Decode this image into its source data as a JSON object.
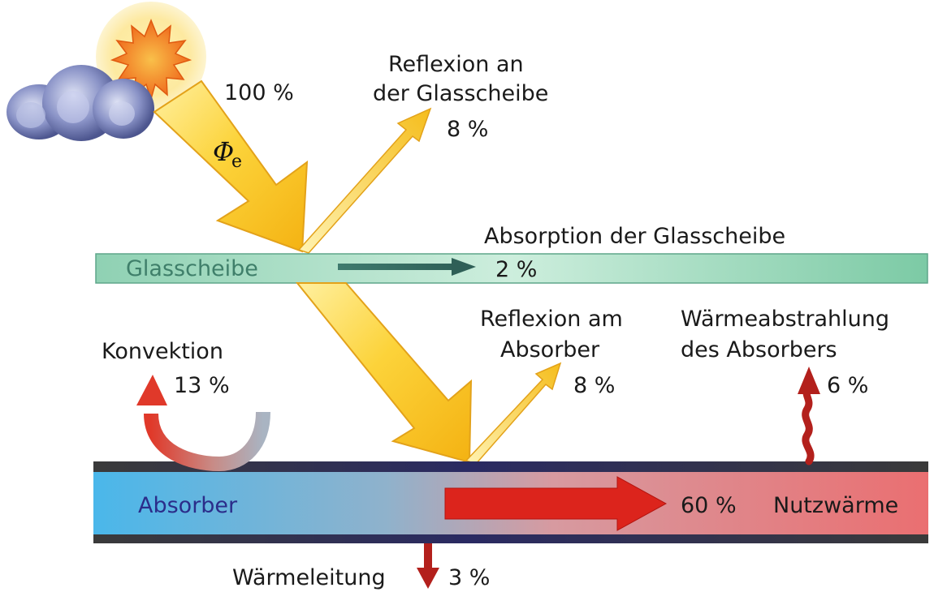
{
  "incoming": {
    "symbol": "Φ",
    "subscript": "e",
    "percent": "100 %"
  },
  "glass": {
    "label": "Glasscheibe",
    "reflection_title_1": "Reflexion an",
    "reflection_title_2": "der Glasscheibe",
    "reflection_percent": "8 %",
    "absorption_title": "Absorption der Glasscheibe",
    "absorption_percent": "2 %"
  },
  "absorber": {
    "label": "Absorber",
    "reflection_title_1": "Reflexion am",
    "reflection_title_2": "Absorber",
    "reflection_percent": "8 %",
    "radiation_title_1": "Wärmeabstrahlung",
    "radiation_title_2": "des Absorbers",
    "radiation_percent": "6 %",
    "useful_percent": "60 %",
    "useful_label": "Nutzwärme",
    "conduction_label": "Wärmeleitung",
    "conduction_percent": "3 %"
  },
  "convection": {
    "label": "Konvektion",
    "percent": "13 %"
  },
  "colors": {
    "beam": "#f7c21f",
    "beam_light": "#fde98a",
    "glass_left": "#7fc8a8",
    "glass_right": "#b6e2cd",
    "absorber_left": "#4db8e8",
    "absorber_right": "#e87070",
    "arrow_red": "#d9221c"
  }
}
